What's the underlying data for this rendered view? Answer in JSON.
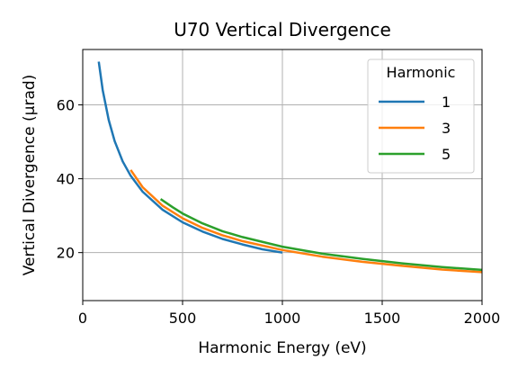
{
  "chart_data": {
    "type": "line",
    "title": "U70 Vertical Divergence",
    "xlabel": "Harmonic Energy (eV)",
    "ylabel": "Vertical Divergence (µrad)",
    "xlim": [
      0,
      2000
    ],
    "ylim": [
      7,
      75
    ],
    "x_ticks": [
      0,
      500,
      1000,
      1500,
      2000
    ],
    "y_ticks": [
      20,
      40,
      60
    ],
    "grid": true,
    "legend": {
      "title": "Harmonic",
      "placement": "top-right"
    },
    "series": [
      {
        "name": "1",
        "color": "#1f77b4",
        "x": [
          80,
          100,
          130,
          160,
          200,
          240,
          300,
          400,
          500,
          600,
          700,
          800,
          900,
          1000
        ],
        "y": [
          71.7,
          64.0,
          55.9,
          50.2,
          44.7,
          40.8,
          36.5,
          31.6,
          28.2,
          25.7,
          23.7,
          22.2,
          20.9,
          20.0
        ]
      },
      {
        "name": "3",
        "color": "#ff7f0e",
        "x": [
          240,
          300,
          400,
          500,
          600,
          700,
          800,
          1000,
          1200,
          1400,
          1600,
          1800,
          2000
        ],
        "y": [
          42.4,
          37.7,
          32.7,
          29.3,
          26.7,
          24.7,
          23.1,
          20.7,
          18.9,
          17.5,
          16.4,
          15.4,
          14.7
        ]
      },
      {
        "name": "5",
        "color": "#2ca02c",
        "x": [
          390,
          450,
          500,
          600,
          700,
          800,
          1000,
          1200,
          1400,
          1600,
          1800,
          2000
        ],
        "y": [
          34.5,
          32.3,
          30.6,
          27.9,
          25.8,
          24.2,
          21.6,
          19.7,
          18.3,
          17.1,
          16.1,
          15.3
        ]
      }
    ]
  }
}
